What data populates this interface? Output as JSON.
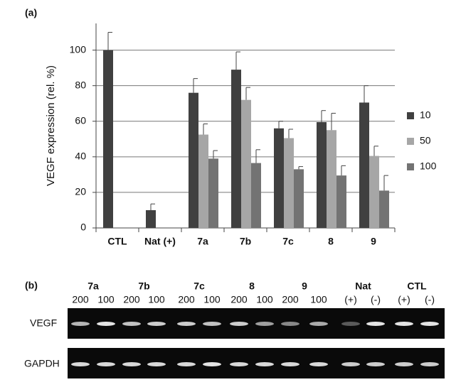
{
  "chart_data": {
    "type": "bar",
    "panel_label": "(a)",
    "ylabel": "VEGF expression (rel. %)",
    "categories": [
      "CTL",
      "Nat (+)",
      "7a",
      "7b",
      "7c",
      "8",
      "9"
    ],
    "series": [
      {
        "name": "10",
        "color": "#404040",
        "values": [
          100,
          10,
          76,
          89,
          56,
          59.5,
          70.5
        ],
        "errors": [
          10,
          3.5,
          8,
          10,
          4,
          6.5,
          9.5
        ]
      },
      {
        "name": "50",
        "color": "#a6a6a6",
        "values": [
          null,
          null,
          52.5,
          72,
          50.5,
          55,
          40.5
        ],
        "errors": [
          null,
          null,
          6,
          7,
          5,
          9.5,
          5.5
        ]
      },
      {
        "name": "100",
        "color": "#737373",
        "values": [
          null,
          null,
          39,
          36.5,
          33,
          29.5,
          21
        ],
        "errors": [
          null,
          null,
          4.5,
          7.5,
          1.5,
          5.5,
          8.5
        ]
      }
    ],
    "ylim": [
      0,
      115
    ],
    "yticks": [
      0,
      20,
      40,
      60,
      80,
      100
    ],
    "grid": true,
    "legend": "right"
  },
  "gel": {
    "panel_label": "(b)",
    "groups": [
      {
        "label": "7a",
        "lanes": [
          "200",
          "100"
        ]
      },
      {
        "label": "7b",
        "lanes": [
          "200",
          "100"
        ]
      },
      {
        "label": "7c",
        "lanes": [
          "200",
          "100"
        ]
      },
      {
        "label": "8",
        "lanes": [
          "200",
          "100"
        ]
      },
      {
        "label": "9",
        "lanes": [
          "200",
          "100"
        ]
      },
      {
        "label": "Nat",
        "lanes": [
          "(+)",
          "(-)"
        ]
      },
      {
        "label": "CTL",
        "lanes": [
          "(+)",
          "(-)"
        ]
      }
    ],
    "rows": [
      "VEGF",
      "GAPDH"
    ]
  }
}
